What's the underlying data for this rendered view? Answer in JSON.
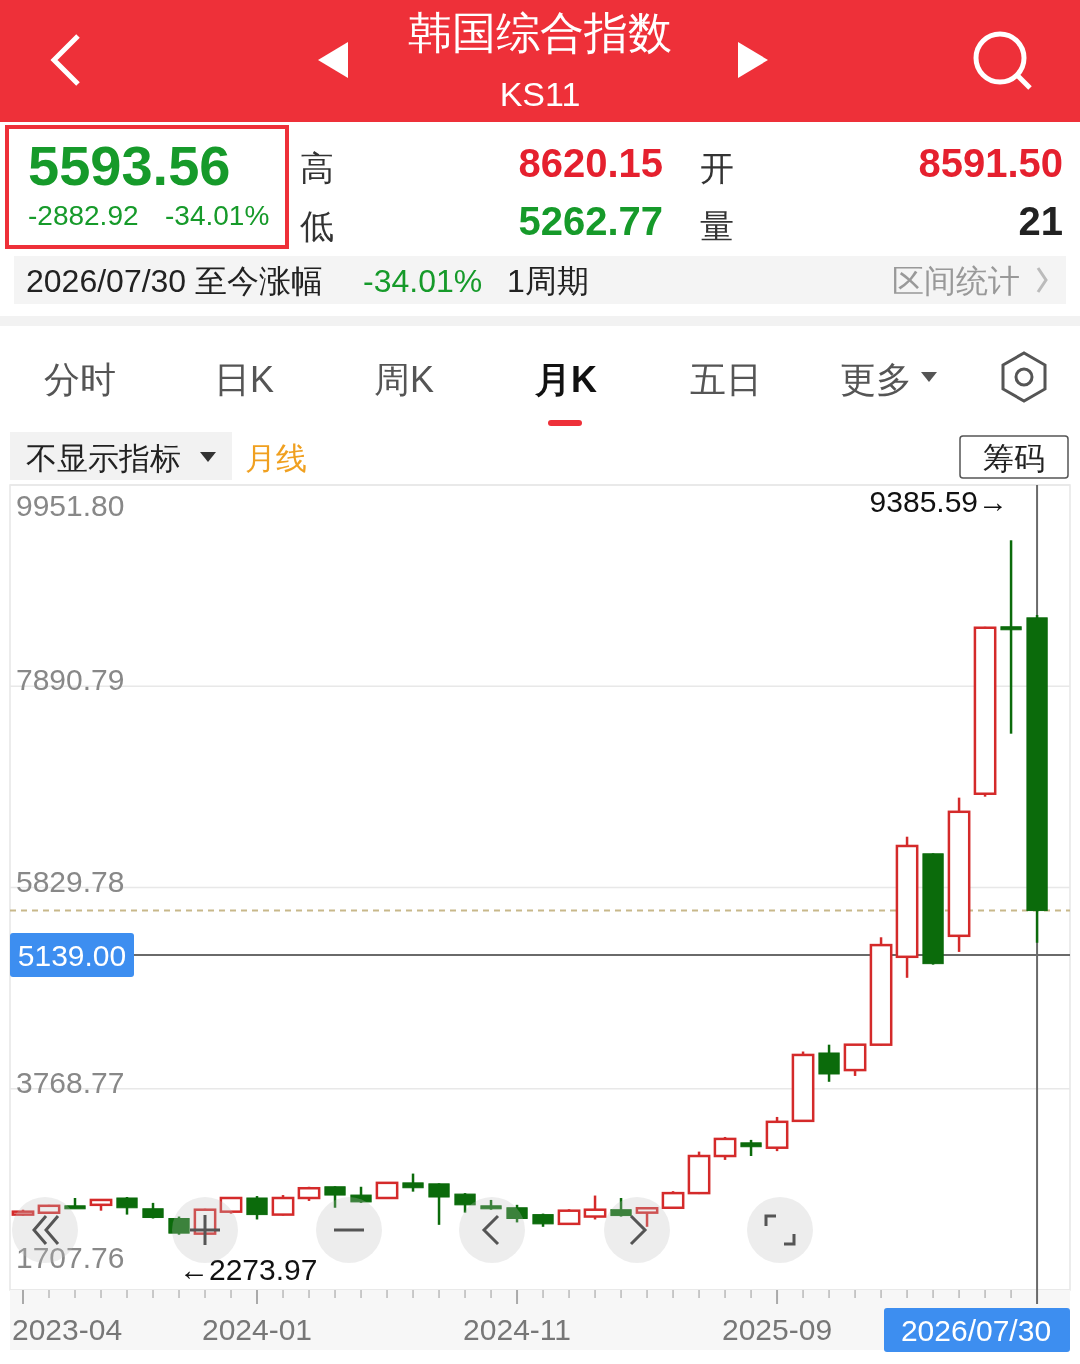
{
  "chart_data": {
    "type": "candlestick",
    "title": "韩国综合指数",
    "subtitle": "KS11",
    "x": [
      "2023-04",
      "2023-05",
      "2023-06",
      "2023-07",
      "2023-08",
      "2023-09",
      "2023-10",
      "2023-11",
      "2023-12",
      "2024-01",
      "2024-02",
      "2024-03",
      "2024-04",
      "2024-05",
      "2024-06",
      "2024-07",
      "2024-08",
      "2024-09",
      "2024-10",
      "2024-11",
      "2024-12",
      "2025-01",
      "2025-02",
      "2025-03",
      "2025-04",
      "2025-05",
      "2025-06",
      "2025-07",
      "2025-08",
      "2025-09",
      "2025-10",
      "2025-11",
      "2025-12",
      "2026-01",
      "2026-02",
      "2026-03",
      "2026-04",
      "2026-05",
      "2026-06",
      "2026-07"
    ],
    "ohlc": [
      [
        2480,
        2530,
        2470,
        2510
      ],
      [
        2499,
        2580,
        2490,
        2570
      ],
      [
        2570,
        2650,
        2545,
        2550
      ],
      [
        2580,
        2635,
        2520,
        2630
      ],
      [
        2650,
        2660,
        2480,
        2550
      ],
      [
        2540,
        2600,
        2440,
        2450
      ],
      [
        2440,
        2460,
        2273.97,
        2290
      ],
      [
        2285,
        2540,
        2280,
        2530
      ],
      [
        2510,
        2660,
        2490,
        2650
      ],
      [
        2650,
        2670,
        2430,
        2480
      ],
      [
        2480,
        2680,
        2470,
        2650
      ],
      [
        2650,
        2765,
        2620,
        2750
      ],
      [
        2765,
        2770,
        2550,
        2680
      ],
      [
        2680,
        2765,
        2600,
        2610
      ],
      [
        2650,
        2810,
        2640,
        2805
      ],
      [
        2805,
        2900,
        2715,
        2755
      ],
      [
        2795,
        2800,
        2375,
        2660
      ],
      [
        2690,
        2700,
        2500,
        2580
      ],
      [
        2570,
        2630,
        2530,
        2540
      ],
      [
        2550,
        2580,
        2400,
        2440
      ],
      [
        2480,
        2490,
        2355,
        2385
      ],
      [
        2385,
        2535,
        2375,
        2520
      ],
      [
        2460,
        2675,
        2430,
        2530
      ],
      [
        2530,
        2650,
        2460,
        2470
      ],
      [
        2500,
        2555,
        2355,
        2545
      ],
      [
        2550,
        2720,
        2540,
        2700
      ],
      [
        2700,
        3125,
        2690,
        3080
      ],
      [
        3080,
        3275,
        3040,
        3255
      ],
      [
        3215,
        3245,
        3080,
        3175
      ],
      [
        3165,
        3480,
        3130,
        3430
      ],
      [
        3440,
        4150,
        3430,
        4115
      ],
      [
        4135,
        4220,
        3840,
        3920
      ],
      [
        3960,
        4225,
        3900,
        4220
      ],
      [
        4220,
        5320,
        4210,
        5240
      ],
      [
        5120,
        6350,
        4905,
        6255
      ],
      [
        6175,
        6180,
        5040,
        5050
      ],
      [
        5335,
        6750,
        5170,
        6605
      ],
      [
        6790,
        8500,
        6760,
        8490
      ],
      [
        8500,
        9385.59,
        7405,
        8475
      ],
      [
        8591.5,
        8620.15,
        5262.77,
        5593.56
      ]
    ],
    "colors": [
      "#d42a2a",
      "#d42a2a",
      "#0b6b0b",
      "#d42a2a",
      "#0b6b0b",
      "#0b6b0b",
      "#0b6b0b",
      "#d42a2a",
      "#d42a2a",
      "#0b6b0b",
      "#d42a2a",
      "#d42a2a",
      "#0b6b0b",
      "#0b6b0b",
      "#d42a2a",
      "#0b6b0b",
      "#0b6b0b",
      "#0b6b0b",
      "#0b6b0b",
      "#0b6b0b",
      "#0b6b0b",
      "#d42a2a",
      "#d42a2a",
      "#0b6b0b",
      "#d42a2a",
      "#d42a2a",
      "#d42a2a",
      "#d42a2a",
      "#0b6b0b",
      "#d42a2a",
      "#d42a2a",
      "#0b6b0b",
      "#d42a2a",
      "#d42a2a",
      "#d42a2a",
      "#0b6b0b",
      "#d42a2a",
      "#d42a2a",
      "#0b6b0b",
      "#0b6b0b"
    ],
    "xlim": [
      "2023-03-16",
      "2026-08-09"
    ],
    "xticks": [
      {
        "value": "2023-04",
        "label": "2023-04"
      },
      {
        "value": "2023-05",
        "label": null
      },
      {
        "value": "2023-06",
        "label": null
      },
      {
        "value": "2023-07",
        "label": null
      },
      {
        "value": "2023-08",
        "label": null
      },
      {
        "value": "2023-09",
        "label": null
      },
      {
        "value": "2023-10",
        "label": null
      },
      {
        "value": "2023-11",
        "label": null
      },
      {
        "value": "2023-12",
        "label": null
      },
      {
        "value": "2024-01",
        "label": "2024-01"
      },
      {
        "value": "2024-02",
        "label": null
      },
      {
        "value": "2024-03",
        "label": null
      },
      {
        "value": "2024-04",
        "label": null
      },
      {
        "value": "2024-05",
        "label": null
      },
      {
        "value": "2024-06",
        "label": null
      },
      {
        "value": "2024-07",
        "label": null
      },
      {
        "value": "2024-08",
        "label": null
      },
      {
        "value": "2024-09",
        "label": null
      },
      {
        "value": "2024-10",
        "label": null
      },
      {
        "value": "2024-11",
        "label": "2024-11"
      },
      {
        "value": "2024-12",
        "label": null
      },
      {
        "value": "2025-01",
        "label": null
      },
      {
        "value": "2025-02",
        "label": null
      },
      {
        "value": "2025-03",
        "label": null
      },
      {
        "value": "2025-04",
        "label": null
      },
      {
        "value": "2025-05",
        "label": null
      },
      {
        "value": "2025-06",
        "label": null
      },
      {
        "value": "2025-07",
        "label": null
      },
      {
        "value": "2025-08",
        "label": null
      },
      {
        "value": "2025-09",
        "label": "2025-09"
      },
      {
        "value": "2025-10",
        "label": null
      },
      {
        "value": "2025-11",
        "label": null
      },
      {
        "value": "2025-12",
        "label": null
      },
      {
        "value": "2026-01",
        "label": null
      },
      {
        "value": "2026-02",
        "label": null
      },
      {
        "value": "2026-03",
        "label": null
      },
      {
        "value": "2026-04",
        "label": null
      },
      {
        "value": "2026-05",
        "label": null
      },
      {
        "value": "2026-06",
        "label": null
      }
    ],
    "ylim": [
      1707.76,
      9951.8
    ],
    "yticks": [
      {
        "value": 9951.8,
        "label": "9951.80"
      },
      {
        "value": 7890.79,
        "label": "7890.79"
      },
      {
        "value": 5829.78,
        "label": "5829.78"
      },
      {
        "value": 3768.77,
        "label": "3768.77"
      },
      {
        "value": 1707.76,
        "label": "1707.76"
      }
    ],
    "grid": "y",
    "ref_lines": [
      {
        "axis": "y",
        "value": 5593.56,
        "color": "#c8b88a",
        "line_style": "dashed"
      },
      {
        "axis": "y",
        "value": 5139.0,
        "label": "5139.00",
        "color": "#6a6a6a"
      },
      {
        "axis": "x",
        "value": "2026-07",
        "label": "2026/07/30",
        "color": "#6a6a6a"
      }
    ],
    "annotations": [
      "5593.56",
      "-2882.92",
      "-34.01%",
      "高",
      "8620.15",
      "开",
      "8591.50",
      "低",
      "5262.77",
      "量",
      "21",
      "2026/07/30 至今涨幅",
      "-34.01%",
      "1周期",
      "区间统计",
      "分时",
      "日K",
      "周K",
      "月K",
      "五日",
      "更多",
      "不显示指标",
      "月线",
      "筹码",
      {
        "text": "9385.59→",
        "x": "2026-06",
        "y": 9385.59
      },
      {
        "text": "←2273.97",
        "x": "2023-10",
        "y": 2273.97
      }
    ]
  }
}
